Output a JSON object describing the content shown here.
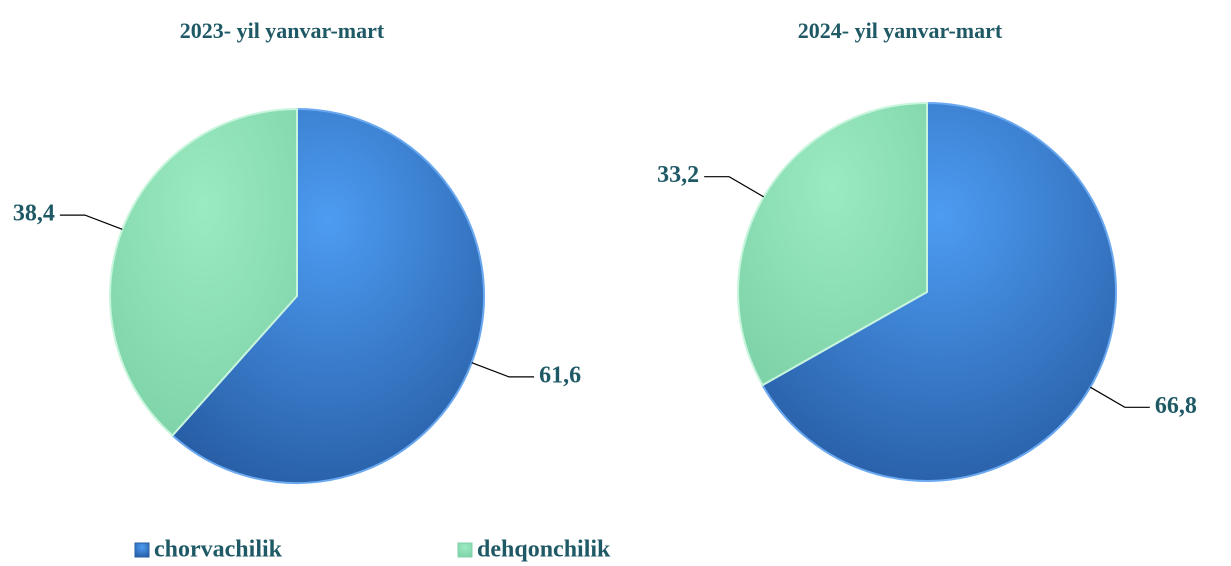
{
  "chart_data": [
    {
      "type": "pie",
      "title": "2023- yil yanvar-mart",
      "categories": [
        "chorvachilik",
        "dehqonchilik"
      ],
      "values": [
        61.6,
        38.4
      ],
      "value_labels": [
        "61,6",
        "38,4"
      ],
      "colors": [
        "#3f86e0",
        "#86dcb0"
      ]
    },
    {
      "type": "pie",
      "title": "2024- yil yanvar-mart",
      "categories": [
        "chorvachilik",
        "dehqonchilik"
      ],
      "values": [
        66.8,
        33.2
      ],
      "value_labels": [
        "66,8",
        "33,2"
      ],
      "colors": [
        "#3f86e0",
        "#86dcb0"
      ]
    }
  ]
}
